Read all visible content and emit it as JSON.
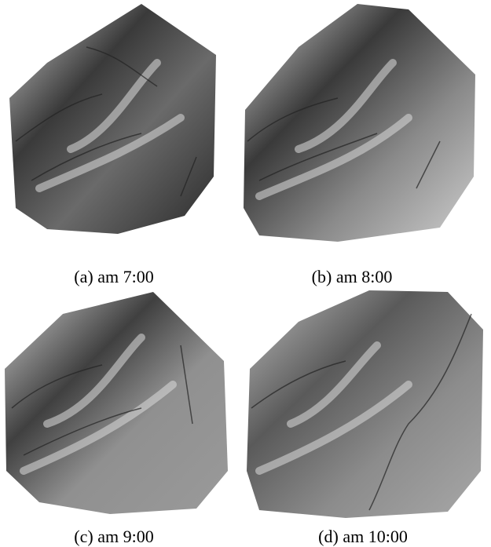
{
  "figure": {
    "panels": [
      {
        "caption": "(a) am 7:00"
      },
      {
        "caption": "(b) am 8:00"
      },
      {
        "caption": "(c) am 9:00"
      },
      {
        "caption": "(d) am 10:00"
      }
    ]
  }
}
